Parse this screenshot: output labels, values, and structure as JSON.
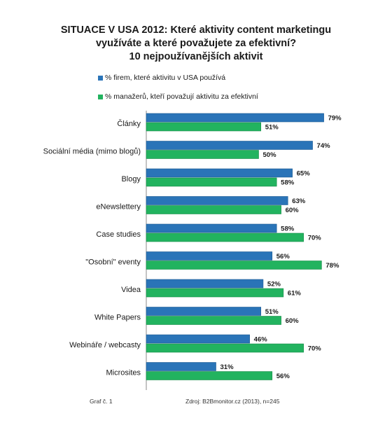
{
  "title_lines": [
    "SITUACE V USA 2012: Které aktivity content marketingu",
    "využíváte a které považujete za efektivní?",
    "10 nejpoužívanějších aktivit"
  ],
  "footer": {
    "left": "Graf č. 1",
    "source": "Zdroj: B2Bmonitor.cz (2013), n=245"
  },
  "colors": {
    "series1": "#2a74b8",
    "series2": "#22b35f"
  },
  "chart_data": {
    "type": "bar",
    "orientation": "horizontal",
    "title": "SITUACE V USA 2012: Které aktivity content marketingu využíváte a které považujete za efektivní? 10 nejpoužívanějších aktivit",
    "categories": [
      "Články",
      "Sociální média (mimo blogů)",
      "Blogy",
      "eNewslettery",
      "Case studies",
      "\"Osobní\" eventy",
      "Videa",
      "White Papers",
      "Webináře / webcasty",
      "Microsites"
    ],
    "series": [
      {
        "name": "% firem, které aktivitu v USA používá",
        "values": [
          79,
          74,
          65,
          63,
          58,
          56,
          52,
          51,
          46,
          31
        ],
        "labels": [
          "79%",
          "74%",
          "65%",
          "63%",
          "58%",
          "56%",
          "52%",
          "51%",
          "46%",
          "31%"
        ]
      },
      {
        "name": "% manažerů, kteří považují aktivitu za efektivní",
        "values": [
          51,
          50,
          58,
          60,
          70,
          78,
          61,
          60,
          70,
          56
        ],
        "labels": [
          "51%",
          "50%",
          "58%",
          "60%",
          "70%",
          "78%",
          "61%",
          "60%",
          "70%",
          "56%"
        ]
      }
    ],
    "xlim": [
      0,
      100
    ],
    "legend": "top",
    "grid": false
  }
}
